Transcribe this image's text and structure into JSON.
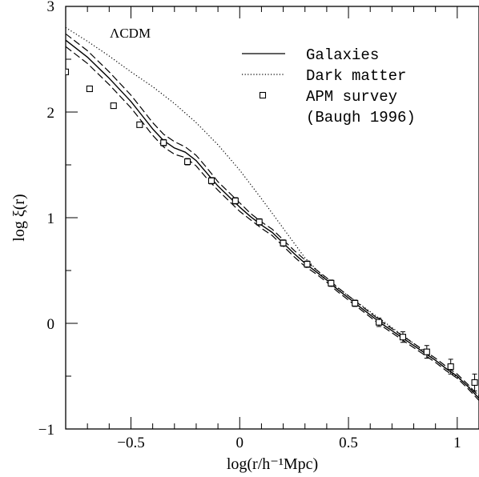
{
  "chart_data": {
    "type": "line",
    "title": "",
    "xlabel": "log(r/h⁻¹Mpc)",
    "ylabel": "log ξ(r)",
    "xlim": [
      -0.8,
      1.1
    ],
    "ylim": [
      -1,
      3
    ],
    "x_ticks": [
      -0.5,
      0,
      0.5,
      1
    ],
    "x_tick_labels": [
      "−0.5",
      "0",
      "0.5",
      "1"
    ],
    "y_ticks": [
      -1,
      0,
      1,
      2,
      3
    ],
    "y_tick_labels": [
      "−1",
      "0",
      "1",
      "2",
      "3"
    ],
    "annotation": "ΛCDM",
    "legend_position": "top-right",
    "legend": [
      {
        "label": "Galaxies",
        "style": "solid"
      },
      {
        "label": "Dark matter",
        "style": "dotted"
      },
      {
        "label": "APM survey",
        "style": "square-marker"
      },
      {
        "label": "(Baugh 1996)",
        "style": "none"
      }
    ],
    "series": [
      {
        "name": "Galaxies",
        "style": "solid",
        "x": [
          -0.8,
          -0.7,
          -0.6,
          -0.5,
          -0.45,
          -0.4,
          -0.35,
          -0.3,
          -0.25,
          -0.2,
          -0.15,
          -0.1,
          -0.05,
          0,
          0.05,
          0.1,
          0.15,
          0.2,
          0.25,
          0.3,
          0.35,
          0.4,
          0.45,
          0.5,
          0.55,
          0.6,
          0.65,
          0.7,
          0.75,
          0.8,
          0.85,
          0.9,
          0.95,
          1.0,
          1.05,
          1.1
        ],
        "y": [
          2.68,
          2.52,
          2.32,
          2.1,
          1.97,
          1.84,
          1.73,
          1.66,
          1.62,
          1.54,
          1.42,
          1.3,
          1.2,
          1.1,
          1.01,
          0.93,
          0.86,
          0.76,
          0.66,
          0.57,
          0.49,
          0.41,
          0.32,
          0.24,
          0.16,
          0.08,
          0.0,
          -0.07,
          -0.14,
          -0.21,
          -0.28,
          -0.35,
          -0.43,
          -0.5,
          -0.6,
          -0.71
        ]
      },
      {
        "name": "",
        "style": "dashed",
        "x": [
          -0.8,
          -0.7,
          -0.6,
          -0.5,
          -0.45,
          -0.4,
          -0.35,
          -0.3,
          -0.25,
          -0.2,
          -0.15,
          -0.1,
          -0.05,
          0,
          0.05,
          0.1,
          0.15,
          0.2,
          0.25,
          0.3,
          0.35,
          0.4,
          0.45,
          0.5,
          0.55,
          0.6,
          0.65,
          0.7,
          0.75,
          0.8,
          0.85,
          0.9,
          0.95,
          1.0,
          1.05,
          1.1
        ],
        "y": [
          2.74,
          2.58,
          2.38,
          2.16,
          2.03,
          1.9,
          1.79,
          1.72,
          1.67,
          1.59,
          1.47,
          1.34,
          1.24,
          1.14,
          1.04,
          0.96,
          0.89,
          0.79,
          0.69,
          0.6,
          0.51,
          0.43,
          0.34,
          0.26,
          0.18,
          0.1,
          0.02,
          -0.05,
          -0.12,
          -0.19,
          -0.26,
          -0.33,
          -0.41,
          -0.48,
          -0.58,
          -0.69
        ]
      },
      {
        "name": "",
        "style": "dashed",
        "x": [
          -0.8,
          -0.7,
          -0.6,
          -0.5,
          -0.45,
          -0.4,
          -0.35,
          -0.3,
          -0.25,
          -0.2,
          -0.15,
          -0.1,
          -0.05,
          0,
          0.05,
          0.1,
          0.15,
          0.2,
          0.25,
          0.3,
          0.35,
          0.4,
          0.45,
          0.5,
          0.55,
          0.6,
          0.65,
          0.7,
          0.75,
          0.8,
          0.85,
          0.9,
          0.95,
          1.0,
          1.05,
          1.1
        ],
        "y": [
          2.62,
          2.46,
          2.26,
          2.04,
          1.91,
          1.78,
          1.67,
          1.6,
          1.57,
          1.49,
          1.37,
          1.26,
          1.16,
          1.06,
          0.98,
          0.9,
          0.83,
          0.73,
          0.63,
          0.54,
          0.47,
          0.39,
          0.3,
          0.22,
          0.14,
          0.06,
          -0.02,
          -0.09,
          -0.16,
          -0.23,
          -0.3,
          -0.37,
          -0.45,
          -0.52,
          -0.62,
          -0.73
        ]
      },
      {
        "name": "Dark matter",
        "style": "dotted",
        "x": [
          -0.8,
          -0.7,
          -0.6,
          -0.5,
          -0.4,
          -0.3,
          -0.2,
          -0.1,
          0,
          0.1,
          0.2,
          0.3,
          0.4,
          0.5,
          0.6,
          0.7,
          0.8,
          0.9,
          1.0,
          1.1
        ],
        "y": [
          2.8,
          2.67,
          2.53,
          2.38,
          2.24,
          2.08,
          1.9,
          1.69,
          1.45,
          1.18,
          0.9,
          0.62,
          0.41,
          0.26,
          0.11,
          -0.04,
          -0.19,
          -0.35,
          -0.51,
          -0.68
        ]
      },
      {
        "name": "APM survey",
        "style": "markers",
        "x": [
          -0.8,
          -0.69,
          -0.58,
          -0.46,
          -0.35,
          -0.24,
          -0.13,
          -0.02,
          0.09,
          0.2,
          0.31,
          0.42,
          0.53,
          0.64,
          0.75,
          0.86,
          0.97,
          1.08
        ],
        "y": [
          2.38,
          2.22,
          2.06,
          1.88,
          1.71,
          1.53,
          1.35,
          1.16,
          0.96,
          0.76,
          0.56,
          0.38,
          0.19,
          0.01,
          -0.13,
          -0.27,
          -0.41,
          -0.56
        ],
        "err": [
          0.02,
          0.02,
          0.02,
          0.02,
          0.03,
          0.03,
          0.03,
          0.03,
          0.03,
          0.03,
          0.03,
          0.03,
          0.03,
          0.04,
          0.05,
          0.06,
          0.07,
          0.08
        ]
      }
    ]
  }
}
